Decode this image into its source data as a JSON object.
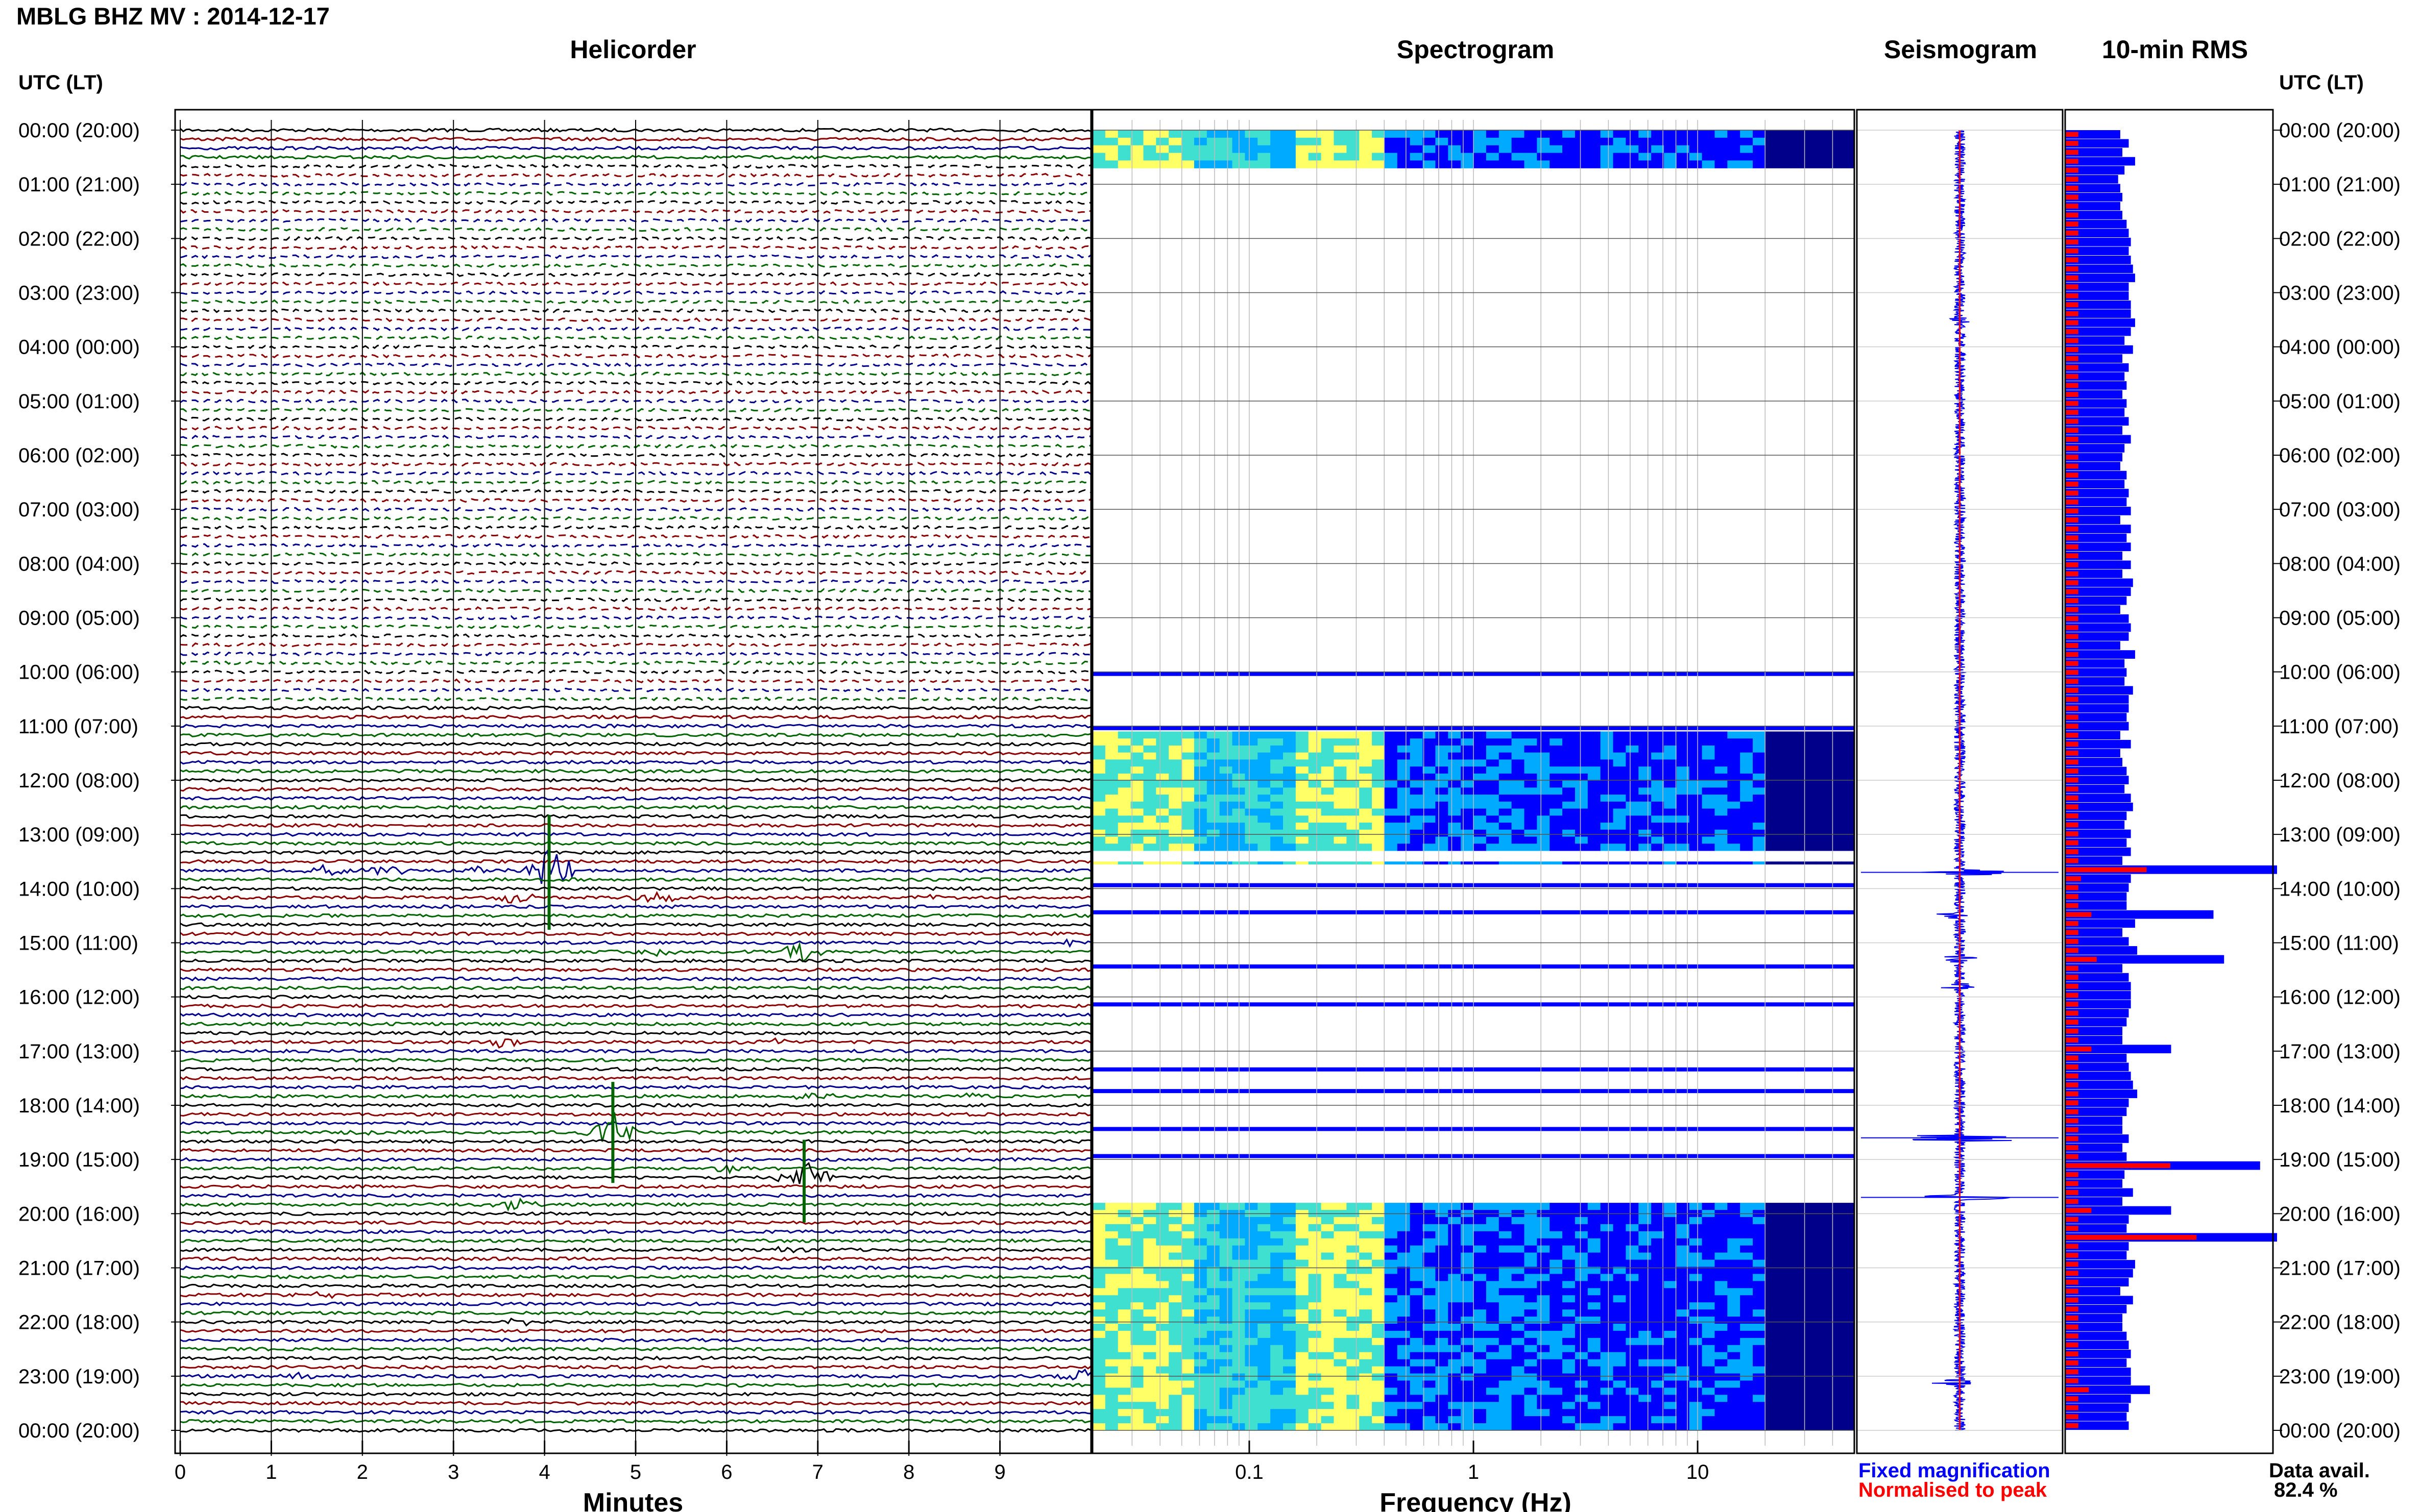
{
  "header": {
    "title": "MBLG BHZ MV : 2014-12-17"
  },
  "panels": {
    "helicorder": "Helicorder",
    "spectrogram": "Spectrogram",
    "seismogram": "Seismogram",
    "rms": "10-min RMS"
  },
  "axis": {
    "utc_header_left": "UTC (LT)",
    "utc_header_right": "UTC (LT)",
    "minutes_label": "Minutes",
    "frequency_label": "Frequency (Hz)"
  },
  "legend": {
    "fixed": "Fixed magnification",
    "normalised": "Normalised to peak"
  },
  "availability": {
    "label": "Data avail.",
    "value": "82.4 %"
  },
  "colors": {
    "trace_black": "#000000",
    "trace_red": "#8b0000",
    "trace_blue": "#00008b",
    "trace_green": "#006400",
    "fixed_bar": "#0000ff",
    "normalised_bar": "#ff0000"
  },
  "chart_data": [
    {
      "type": "line",
      "name": "helicorder",
      "xlabel": "Minutes",
      "ylabel": "UTC (LT)",
      "xlim": [
        0,
        10
      ],
      "xticks": [
        "0",
        "1",
        "2",
        "3",
        "4",
        "5",
        "6",
        "7",
        "8",
        "9"
      ],
      "row_minutes": 10,
      "rows": 145,
      "hour_labels": [
        "00:00 (20:00)",
        "01:00 (21:00)",
        "02:00 (22:00)",
        "03:00 (23:00)",
        "04:00 (00:00)",
        "05:00 (01:00)",
        "06:00 (02:00)",
        "07:00 (03:00)",
        "08:00 (04:00)",
        "09:00 (05:00)",
        "10:00 (06:00)",
        "11:00 (07:00)",
        "12:00 (08:00)",
        "13:00 (09:00)",
        "14:00 (10:00)",
        "15:00 (11:00)",
        "16:00 (12:00)",
        "17:00 (13:00)",
        "18:00 (14:00)",
        "19:00 (15:00)",
        "20:00 (16:00)",
        "21:00 (17:00)",
        "22:00 (18:00)",
        "23:00 (19:00)",
        "00:00 (20:00)"
      ],
      "trace_color_cycle": [
        "#000000",
        "#8b0000",
        "#00008b",
        "#006400"
      ],
      "gaps": [
        [
          0.6,
          10.5
        ]
      ],
      "events": [
        {
          "hour": 13.7,
          "minute": 1.6,
          "amp": 0.5
        },
        {
          "hour": 13.7,
          "minute": 2.3,
          "amp": 0.6
        },
        {
          "hour": 13.7,
          "minute": 3.3,
          "amp": 0.4
        },
        {
          "hour": 13.7,
          "minute": 4.05,
          "amp": 2.5
        },
        {
          "hour": 14.2,
          "minute": 3.7,
          "amp": 0.6
        },
        {
          "hour": 14.2,
          "minute": 5.2,
          "amp": 0.8
        },
        {
          "hour": 14.2,
          "minute": 8.2,
          "amp": 0.3
        },
        {
          "hour": 15.0,
          "minute": 9.7,
          "amp": 0.4
        },
        {
          "hour": 15.1,
          "minute": 5.3,
          "amp": 0.5
        },
        {
          "hour": 15.1,
          "minute": 6.8,
          "amp": 0.9
        },
        {
          "hour": 16.8,
          "minute": 3.5,
          "amp": 0.4
        },
        {
          "hour": 16.8,
          "minute": 6.4,
          "amp": 0.4
        },
        {
          "hour": 17.8,
          "minute": 7.0,
          "amp": 0.4
        },
        {
          "hour": 17.8,
          "minute": 8.8,
          "amp": 0.3
        },
        {
          "hour": 18.5,
          "minute": 2.0,
          "amp": 0.3
        },
        {
          "hour": 18.5,
          "minute": 4.75,
          "amp": 2.2
        },
        {
          "hour": 19.1,
          "minute": 6.0,
          "amp": 0.4
        },
        {
          "hour": 19.4,
          "minute": 6.85,
          "amp": 1.8
        },
        {
          "hour": 19.9,
          "minute": 3.65,
          "amp": 0.7
        },
        {
          "hour": 20.7,
          "minute": 6.7,
          "amp": 0.4
        },
        {
          "hour": 21.5,
          "minute": 1.6,
          "amp": 0.3
        },
        {
          "hour": 22.0,
          "minute": 3.7,
          "amp": 0.3
        },
        {
          "hour": 23.0,
          "minute": 9.9,
          "amp": 0.8
        },
        {
          "hour": 23.0,
          "minute": 1.3,
          "amp": 0.4
        }
      ]
    },
    {
      "type": "heatmap",
      "name": "spectrogram",
      "xlabel": "Frequency (Hz)",
      "xscale": "log",
      "xlim": [
        0.02,
        50
      ],
      "xticks": [
        "0.1",
        "1",
        "10"
      ],
      "colormap": [
        "#00008b",
        "#0000ff",
        "#00aaff",
        "#40e0d0",
        "#ffff66",
        "#ffffff"
      ],
      "data_blocks_utc_hours": [
        [
          0.0,
          0.7
        ],
        [
          11.1,
          13.3
        ],
        [
          13.5,
          13.55
        ],
        [
          19.8,
          24.0
        ]
      ],
      "sparse_lines_utc_hours": [
        10.0,
        11.0,
        13.9,
        14.4,
        15.4,
        16.1,
        17.3,
        17.7,
        18.4,
        18.9
      ]
    },
    {
      "type": "line",
      "name": "seismogram",
      "ylim": [
        0,
        24
      ],
      "spikes_utc_hours": [
        {
          "hour": 3.5,
          "amp": 0.2
        },
        {
          "hour": 13.7,
          "amp": 1.0
        },
        {
          "hour": 14.5,
          "amp": 0.35
        },
        {
          "hour": 15.3,
          "amp": 0.5
        },
        {
          "hour": 15.8,
          "amp": 0.3
        },
        {
          "hour": 18.6,
          "amp": 1.0
        },
        {
          "hour": 19.7,
          "amp": 1.0
        },
        {
          "hour": 23.1,
          "amp": 0.5
        }
      ]
    },
    {
      "type": "bar",
      "name": "rms",
      "title": "10-min RMS",
      "orientation": "horizontal",
      "series": [
        {
          "name": "Fixed magnification",
          "color": "#0000ff",
          "values": [
            0.26,
            0.3,
            0.27,
            0.33,
            0.28,
            0.25,
            0.26,
            0.27,
            0.26,
            0.27,
            0.29,
            0.3,
            0.31,
            0.3,
            0.31,
            0.32,
            0.33,
            0.3,
            0.3,
            0.31,
            0.31,
            0.33,
            0.31,
            0.28,
            0.32,
            0.27,
            0.3,
            0.28,
            0.29,
            0.27,
            0.29,
            0.28,
            0.3,
            0.27,
            0.31,
            0.28,
            0.27,
            0.26,
            0.29,
            0.28,
            0.3,
            0.29,
            0.31,
            0.26,
            0.31,
            0.29,
            0.31,
            0.27,
            0.31,
            0.27,
            0.32,
            0.31,
            0.29,
            0.26,
            0.3,
            0.31,
            0.3,
            0.26,
            0.33,
            0.28,
            0.29,
            0.28,
            0.32,
            0.3,
            0.3,
            0.29,
            0.3,
            0.26,
            0.31,
            0.26,
            0.27,
            0.29,
            0.3,
            0.28,
            0.31,
            0.32,
            0.29,
            0.28,
            0.31,
            0.29,
            0.31,
            0.27,
            1.0,
            0.31,
            0.3,
            0.29,
            0.29,
            0.7,
            0.33,
            0.27,
            0.3,
            0.34,
            0.75,
            0.27,
            0.3,
            0.31,
            0.31,
            0.31,
            0.3,
            0.29,
            0.27,
            0.27,
            0.5,
            0.29,
            0.3,
            0.31,
            0.32,
            0.34,
            0.3,
            0.29,
            0.27,
            0.27,
            0.3,
            0.27,
            0.29,
            0.92,
            0.28,
            0.27,
            0.32,
            0.27,
            0.5,
            0.3,
            0.29,
            1.0,
            0.3,
            0.29,
            0.33,
            0.32,
            0.3,
            0.26,
            0.32,
            0.29,
            0.27,
            0.27,
            0.29,
            0.3,
            0.31,
            0.29,
            0.31,
            0.31,
            0.4,
            0.31,
            0.3,
            0.29,
            0.3
          ]
        },
        {
          "name": "Normalised to peak",
          "color": "#ff0000",
          "values": [
            0.1,
            0.1,
            0.1,
            0.1,
            0.1,
            0.1,
            0.1,
            0.1,
            0.1,
            0.1,
            0.1,
            0.1,
            0.1,
            0.1,
            0.1,
            0.1,
            0.1,
            0.1,
            0.1,
            0.1,
            0.1,
            0.1,
            0.1,
            0.1,
            0.1,
            0.1,
            0.1,
            0.1,
            0.1,
            0.1,
            0.1,
            0.1,
            0.1,
            0.1,
            0.1,
            0.1,
            0.1,
            0.1,
            0.1,
            0.1,
            0.1,
            0.1,
            0.1,
            0.1,
            0.1,
            0.1,
            0.1,
            0.1,
            0.1,
            0.1,
            0.1,
            0.1,
            0.1,
            0.1,
            0.1,
            0.1,
            0.1,
            0.1,
            0.1,
            0.1,
            0.1,
            0.1,
            0.1,
            0.1,
            0.1,
            0.1,
            0.1,
            0.1,
            0.1,
            0.1,
            0.1,
            0.1,
            0.1,
            0.1,
            0.1,
            0.1,
            0.1,
            0.1,
            0.1,
            0.1,
            0.1,
            0.1,
            0.62,
            0.12,
            0.1,
            0.1,
            0.1,
            0.2,
            0.1,
            0.1,
            0.1,
            0.1,
            0.24,
            0.1,
            0.1,
            0.1,
            0.1,
            0.1,
            0.1,
            0.1,
            0.1,
            0.1,
            0.2,
            0.1,
            0.1,
            0.1,
            0.1,
            0.1,
            0.1,
            0.1,
            0.1,
            0.1,
            0.1,
            0.1,
            0.1,
            0.8,
            0.1,
            0.1,
            0.1,
            0.1,
            0.2,
            0.1,
            0.1,
            1.0,
            0.1,
            0.1,
            0.1,
            0.1,
            0.1,
            0.1,
            0.1,
            0.1,
            0.1,
            0.1,
            0.1,
            0.1,
            0.1,
            0.1,
            0.1,
            0.1,
            0.18,
            0.1,
            0.1,
            0.1,
            0.1
          ]
        }
      ]
    }
  ]
}
